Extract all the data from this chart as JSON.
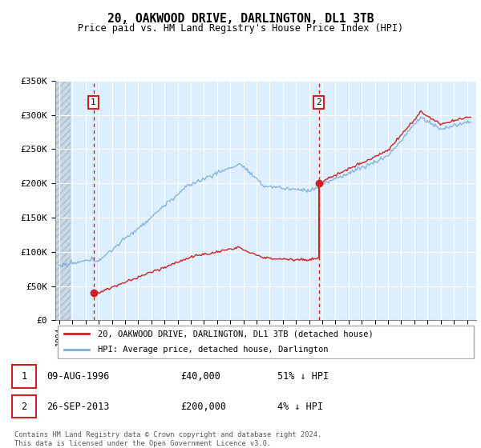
{
  "title": "20, OAKWOOD DRIVE, DARLINGTON, DL1 3TB",
  "subtitle": "Price paid vs. HM Land Registry's House Price Index (HPI)",
  "legend_line1": "20, OAKWOOD DRIVE, DARLINGTON, DL1 3TB (detached house)",
  "legend_line2": "HPI: Average price, detached house, Darlington",
  "table": [
    {
      "num": "1",
      "date": "09-AUG-1996",
      "price": "£40,000",
      "pct": "51% ↓ HPI"
    },
    {
      "num": "2",
      "date": "26-SEP-2013",
      "price": "£200,000",
      "pct": "4% ↓ HPI"
    }
  ],
  "footnote1": "Contains HM Land Registry data © Crown copyright and database right 2024.",
  "footnote2": "This data is licensed under the Open Government Licence v3.0.",
  "ylim": [
    0,
    350000
  ],
  "yticks": [
    0,
    50000,
    100000,
    150000,
    200000,
    250000,
    300000,
    350000
  ],
  "ytick_labels": [
    "£0",
    "£50K",
    "£100K",
    "£150K",
    "£200K",
    "£250K",
    "£300K",
    "£350K"
  ],
  "sale1_year": 1996.6,
  "sale1_price": 40000,
  "sale2_year": 2013.73,
  "sale2_price": 200000,
  "hpi_color": "#7eb0d5",
  "property_color": "#cc2222",
  "chart_bg": "#ddeeff",
  "hatch_bg": "#c8d8e8",
  "background_color": "#ffffff",
  "grid_color": "#ffffff"
}
